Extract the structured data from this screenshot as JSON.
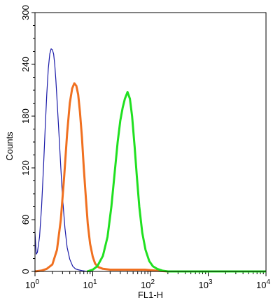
{
  "chart_data": {
    "type": "line",
    "title": "",
    "xlabel": "FL1-H",
    "ylabel": "Counts",
    "x_scale": "log",
    "xlim": [
      1,
      10000
    ],
    "ylim": [
      0,
      300
    ],
    "x_ticks": [
      {
        "value": 1,
        "base": "10",
        "exp": "0"
      },
      {
        "value": 10,
        "base": "10",
        "exp": "1"
      },
      {
        "value": 100,
        "base": "10",
        "exp": "2"
      },
      {
        "value": 1000,
        "base": "10",
        "exp": "3"
      },
      {
        "value": 10000,
        "base": "10",
        "exp": "4"
      }
    ],
    "y_ticks": [
      "0",
      "60",
      "120",
      "180",
      "240",
      "300"
    ],
    "grid": false,
    "legend": "none",
    "series": [
      {
        "color": "#1a1aa8",
        "x": [
          1,
          1.05,
          1.1,
          1.2,
          1.3,
          1.4,
          1.5,
          1.6,
          1.7,
          1.8,
          1.9,
          2.0,
          2.1,
          2.2,
          2.3,
          2.4,
          2.6,
          2.8,
          3.0,
          3.3,
          3.6,
          4.0,
          4.5,
          5.0,
          5.5,
          6.5,
          8,
          10
        ],
        "values": [
          45,
          20,
          22,
          40,
          75,
          120,
          165,
          205,
          235,
          252,
          258,
          257,
          252,
          240,
          222,
          200,
          160,
          120,
          85,
          50,
          28,
          14,
          6,
          3,
          2,
          1,
          0,
          0
        ]
      },
      {
        "color": "#f07020",
        "x": [
          1,
          1.3,
          1.6,
          2.0,
          2.4,
          2.8,
          3.2,
          3.6,
          4.0,
          4.4,
          4.8,
          5.2,
          5.6,
          6.0,
          6.5,
          7.0,
          7.6,
          8.2,
          9.0,
          10,
          11,
          12.5,
          15,
          20,
          30,
          50,
          80,
          120,
          200
        ],
        "values": [
          0,
          1,
          3,
          8,
          25,
          60,
          110,
          160,
          195,
          212,
          218,
          215,
          205,
          185,
          155,
          120,
          85,
          55,
          32,
          17,
          9,
          5,
          3,
          2,
          2,
          2,
          2,
          1,
          0
        ]
      },
      {
        "color": "#20e020",
        "x": [
          8,
          10,
          12,
          15,
          18,
          21,
          24,
          27,
          30,
          33,
          36,
          40,
          44,
          48,
          53,
          58,
          64,
          72,
          82,
          95,
          110,
          130,
          160,
          200,
          300,
          500,
          1000,
          10000
        ],
        "values": [
          0,
          2,
          6,
          18,
          40,
          75,
          115,
          150,
          175,
          190,
          200,
          208,
          200,
          180,
          145,
          110,
          75,
          45,
          25,
          12,
          6,
          3,
          1,
          0,
          0,
          0,
          0,
          0
        ]
      }
    ]
  }
}
